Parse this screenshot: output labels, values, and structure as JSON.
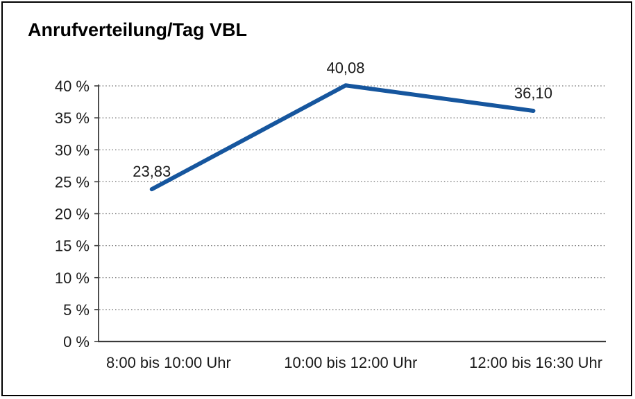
{
  "figure": {
    "title": "Anrufverteilung/Tag VBL"
  },
  "chart_data": {
    "type": "line",
    "title": "Anrufverteilung/Tag VBL",
    "categories": [
      "8:00 bis 10:00 Uhr",
      "10:00 bis 12:00 Uhr",
      "12:00 bis 16:30 Uhr"
    ],
    "values": [
      23.83,
      40.08,
      36.1
    ],
    "value_labels": [
      "23,83",
      "40,08",
      "36,10"
    ],
    "series_name": "Anrufverteilung",
    "xlabel": "",
    "ylabel": "",
    "ylim": [
      0,
      40
    ],
    "ytick_step": 5,
    "ytick_labels": [
      "0 %",
      "5 %",
      "10 %",
      "15 %",
      "20 %",
      "25 %",
      "30 %",
      "35 %",
      "40 %"
    ],
    "grid": "horizontal-dotted",
    "legend": "none",
    "colors": {
      "line": "#16569e",
      "axis": "#3a3a3a",
      "grid": "#767676",
      "text": "#1a1a1a",
      "background": "#ffffff"
    }
  }
}
